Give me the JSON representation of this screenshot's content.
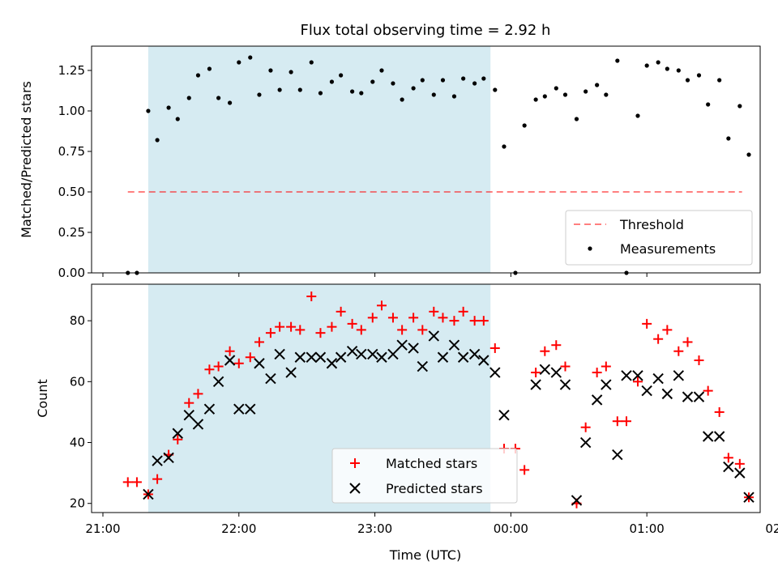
{
  "title": "Flux total observing time = 2.92 h",
  "colors": {
    "shade": "#add8e6",
    "threshold": "#ff0000",
    "matched": "#ff0000",
    "predicted": "#000000",
    "measurement": "#000000"
  },
  "chart_data": [
    {
      "type": "scatter",
      "ylabel": "Matched/Predicted stars",
      "ylim": [
        0,
        1.4
      ],
      "yticks": [
        "0.00",
        "0.25",
        "0.50",
        "0.75",
        "1.00",
        "1.25"
      ],
      "xlim": [
        -5,
        290
      ],
      "grid": false,
      "legend_position": "lower-right",
      "shaded_span": [
        20,
        171
      ],
      "threshold": {
        "name": "Threshold",
        "y": 0.5,
        "x": [
          11,
          282
        ]
      },
      "series": [
        {
          "name": "Measurements",
          "x": [
            11,
            15,
            20,
            24,
            29,
            33,
            38,
            42,
            47,
            51,
            56,
            60,
            65,
            69,
            74,
            78,
            83,
            87,
            92,
            96,
            101,
            105,
            110,
            114,
            119,
            123,
            128,
            132,
            137,
            141,
            146,
            150,
            155,
            159,
            164,
            168,
            173,
            177,
            182,
            186,
            191,
            195,
            200,
            204,
            209,
            213,
            218,
            222,
            227,
            231,
            236,
            240,
            245,
            249,
            254,
            258,
            263,
            267,
            272,
            276,
            281,
            285
          ],
          "y": [
            0.0,
            0.0,
            1.0,
            0.82,
            1.02,
            0.95,
            1.08,
            1.22,
            1.26,
            1.08,
            1.05,
            1.3,
            1.33,
            1.1,
            1.25,
            1.13,
            1.24,
            1.13,
            1.3,
            1.11,
            1.18,
            1.22,
            1.12,
            1.11,
            1.18,
            1.25,
            1.17,
            1.07,
            1.14,
            1.19,
            1.1,
            1.19,
            1.09,
            1.2,
            1.17,
            1.2,
            1.13,
            0.78,
            0.0,
            0.91,
            1.07,
            1.09,
            1.14,
            1.1,
            0.95,
            1.12,
            1.16,
            1.1,
            1.31,
            0.0,
            0.97,
            1.28,
            1.3,
            1.26,
            1.25,
            1.19,
            1.22,
            1.04,
            1.19,
            0.83,
            1.03,
            0.73
          ]
        }
      ]
    },
    {
      "type": "scatter",
      "xlabel": "Time (UTC)",
      "ylabel": "Count",
      "ylim": [
        17,
        92
      ],
      "yticks": [
        "20",
        "40",
        "60",
        "80"
      ],
      "xlim": [
        -5,
        290
      ],
      "xticks": [
        "21:00",
        "22:00",
        "23:00",
        "00:00",
        "01:00",
        "02:00"
      ],
      "grid": false,
      "legend_position": "lower-center",
      "shaded_span": [
        20,
        171
      ],
      "series": [
        {
          "name": "Matched stars",
          "marker": "+",
          "x": [
            11,
            15,
            20,
            24,
            29,
            33,
            38,
            42,
            47,
            51,
            56,
            60,
            65,
            69,
            74,
            78,
            83,
            87,
            92,
            96,
            101,
            105,
            110,
            114,
            119,
            123,
            128,
            132,
            137,
            141,
            146,
            150,
            155,
            159,
            164,
            168,
            173,
            177,
            182,
            186,
            191,
            195,
            200,
            204,
            209,
            213,
            218,
            222,
            227,
            231,
            236,
            240,
            245,
            249,
            254,
            258,
            263,
            267,
            272,
            276,
            281,
            285
          ],
          "y": [
            27,
            27,
            23,
            28,
            36,
            41,
            53,
            56,
            64,
            65,
            70,
            66,
            68,
            73,
            76,
            78,
            78,
            77,
            88,
            76,
            78,
            83,
            79,
            77,
            81,
            85,
            81,
            77,
            81,
            77,
            83,
            81,
            80,
            83,
            80,
            80,
            71,
            38,
            38,
            31,
            63,
            70,
            72,
            65,
            20,
            45,
            63,
            65,
            47,
            47,
            60,
            79,
            74,
            77,
            70,
            73,
            67,
            57,
            50,
            35,
            33,
            22
          ]
        },
        {
          "name": "Predicted stars",
          "marker": "x",
          "x": [
            20,
            24,
            29,
            33,
            38,
            42,
            47,
            51,
            56,
            60,
            65,
            69,
            74,
            78,
            83,
            87,
            92,
            96,
            101,
            105,
            110,
            114,
            119,
            123,
            128,
            132,
            137,
            141,
            146,
            150,
            155,
            159,
            164,
            168,
            173,
            177,
            191,
            195,
            200,
            204,
            209,
            213,
            218,
            222,
            227,
            231,
            236,
            240,
            245,
            249,
            254,
            258,
            263,
            267,
            272,
            276,
            281,
            285
          ],
          "y": [
            23,
            34,
            35,
            43,
            49,
            46,
            51,
            60,
            67,
            51,
            51,
            66,
            61,
            69,
            63,
            68,
            68,
            68,
            66,
            68,
            70,
            69,
            69,
            68,
            69,
            72,
            71,
            65,
            75,
            68,
            72,
            68,
            69,
            67,
            63,
            49,
            59,
            64,
            63,
            59,
            21,
            40,
            54,
            59,
            36,
            62,
            62,
            57,
            61,
            56,
            62,
            55,
            55,
            42,
            42,
            32,
            30,
            22
          ]
        }
      ]
    }
  ]
}
